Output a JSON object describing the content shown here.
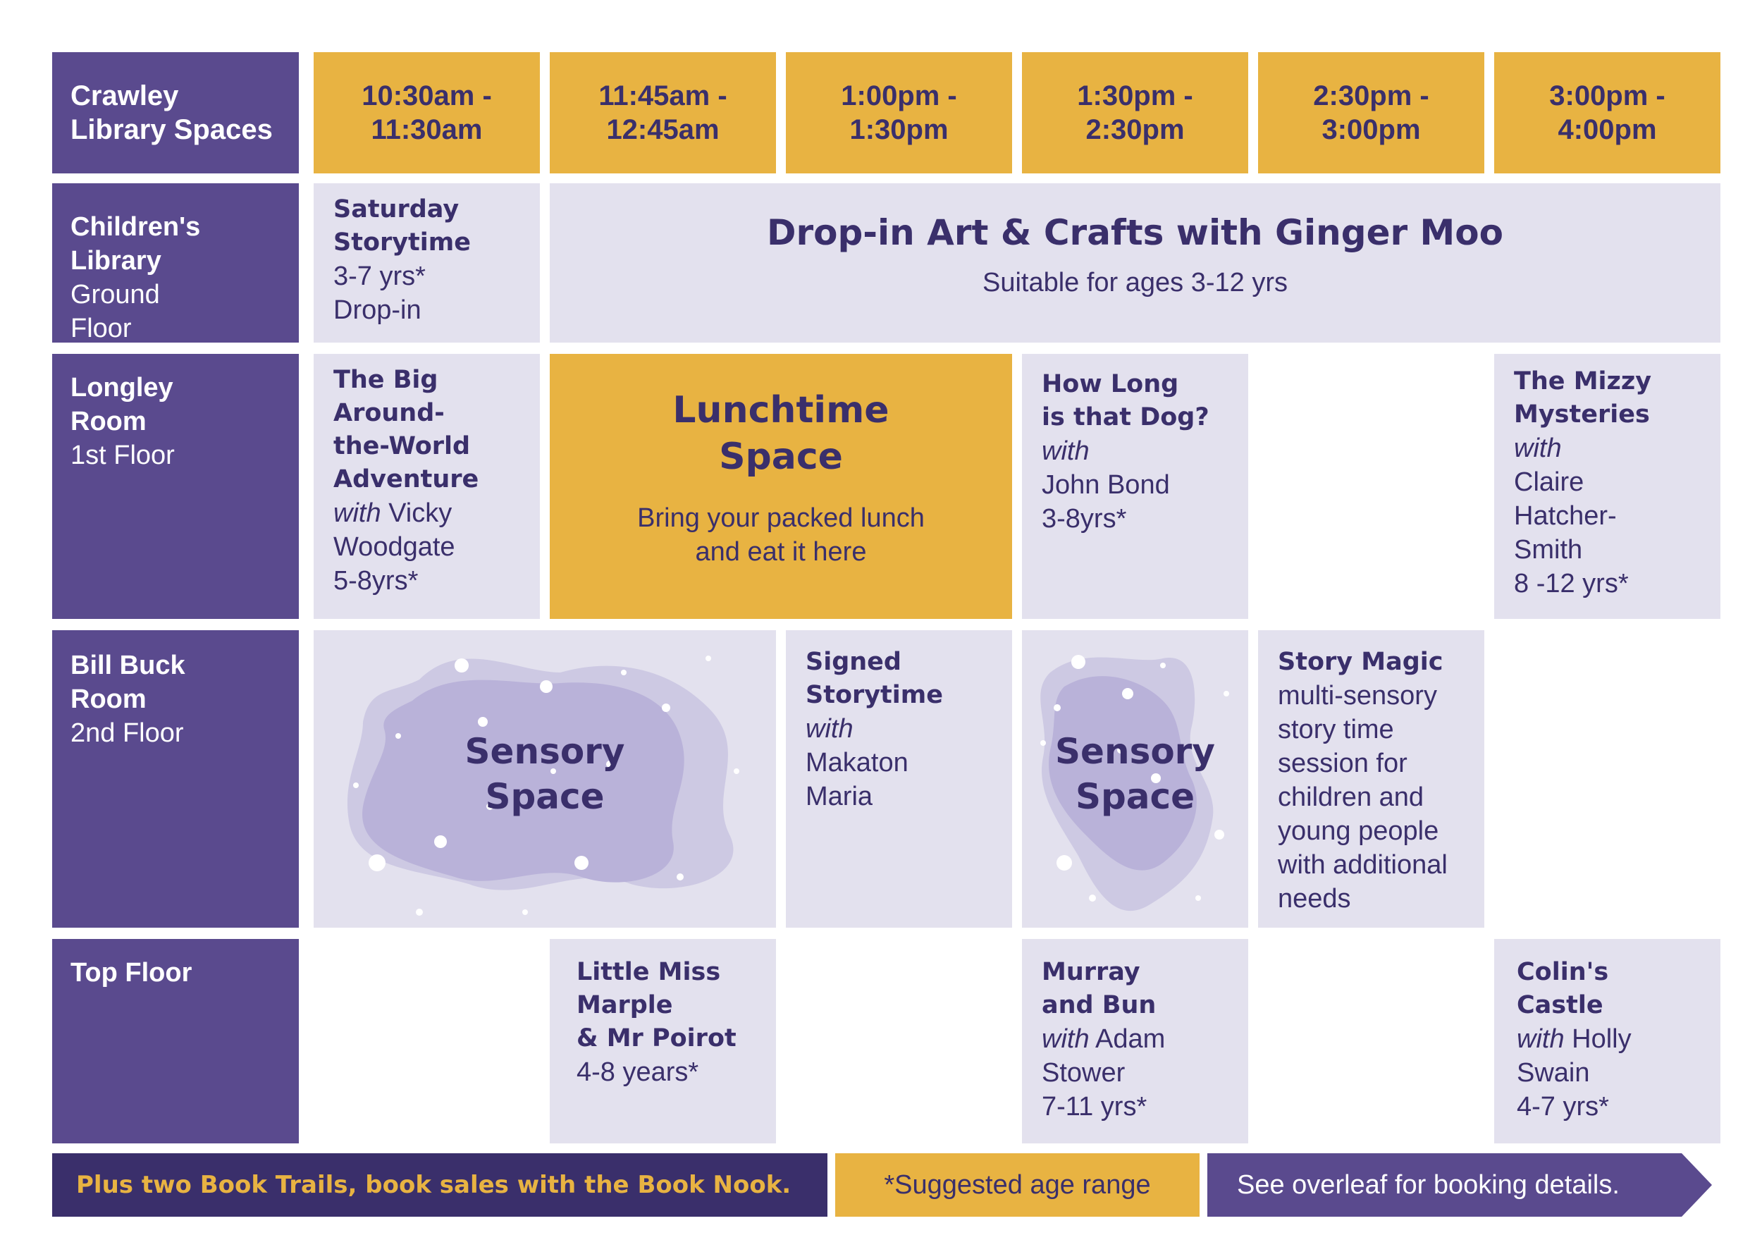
{
  "header": {
    "title": "Crawley Library Spaces",
    "times": [
      [
        "10:30am -",
        "11:30am"
      ],
      [
        "11:45am -",
        "12:45am"
      ],
      [
        "1:00pm -",
        "1:30pm"
      ],
      [
        "1:30pm -",
        "2:30pm"
      ],
      [
        "2:30pm -",
        "3:00pm"
      ],
      [
        "3:00pm -",
        "4:00pm"
      ]
    ]
  },
  "rooms": {
    "childrens": {
      "name1": "Children's",
      "name2": "Library",
      "floor1": "Ground",
      "floor2": "Floor"
    },
    "longley": {
      "name1": "Longley",
      "name2": "Room",
      "floor": "1st Floor"
    },
    "billbuck": {
      "name1": "Bill Buck",
      "name2": "Room",
      "floor": "2nd Floor"
    },
    "top": {
      "name": "Top Floor"
    }
  },
  "events": {
    "saturday_storytime": {
      "title1": "Saturday",
      "title2": "Storytime",
      "age": "3-7 yrs*",
      "note": "Drop-in"
    },
    "drop_in_art": {
      "title": "Drop-in Art & Crafts with Ginger Moo",
      "subtitle": "Suitable for ages 3-12 yrs"
    },
    "big_adventure": {
      "title1": "The Big",
      "title2": "Around-",
      "title3": "the-World",
      "title4": "Adventure",
      "with": "with",
      "host1": "Vicky",
      "host2": "Woodgate",
      "age": "5-8yrs*"
    },
    "lunchtime": {
      "title1": "Lunchtime",
      "title2": "Space",
      "sub1": "Bring your packed lunch",
      "sub2": "and eat it here"
    },
    "how_long_dog": {
      "title1": "How Long",
      "title2": "is that Dog?",
      "with": "with",
      "host": "John Bond",
      "age": "3-8yrs*"
    },
    "mizzy": {
      "title1": "The Mizzy",
      "title2": "Mysteries",
      "with": "with",
      "host1": "Claire",
      "host2": "Hatcher-",
      "host3": "Smith",
      "age": "8 -12 yrs*"
    },
    "sensory1": {
      "line1": "Sensory",
      "line2": "Space"
    },
    "signed_storytime": {
      "title1": "Signed",
      "title2": "Storytime",
      "with": "with",
      "host1": "Makaton",
      "host2": "Maria"
    },
    "sensory2": {
      "line1": "Sensory",
      "line2": "Space"
    },
    "story_magic": {
      "title": "Story Magic",
      "d1": "multi-sensory",
      "d2": "story time",
      "d3": "session for",
      "d4": "children and",
      "d5": "young people",
      "d6": "with additional",
      "d7": "needs"
    },
    "marple": {
      "title1": "Little Miss",
      "title2": "Marple",
      "title3": "& Mr Poirot",
      "age": "4-8 years*"
    },
    "murray": {
      "title1": "Murray",
      "title2": "and Bun",
      "with": "with",
      "host1": "Adam",
      "host2": "Stower",
      "age": "7-11 yrs*"
    },
    "colin": {
      "title1": "Colin's",
      "title2": "Castle",
      "with": "with",
      "host1": "Holly",
      "host2": "Swain",
      "age": "4-7 yrs*"
    }
  },
  "footer": {
    "left": "Plus two Book Trails, book sales with the Book Nook.",
    "middle": "*Suggested age range",
    "right": "See overleaf for booking details."
  },
  "colors": {
    "purple": "#5a4a8e",
    "dark_purple": "#3a2f6b",
    "gold": "#e8b342",
    "lavender": "#e3e1ee",
    "blob": "#c4bfdd"
  }
}
